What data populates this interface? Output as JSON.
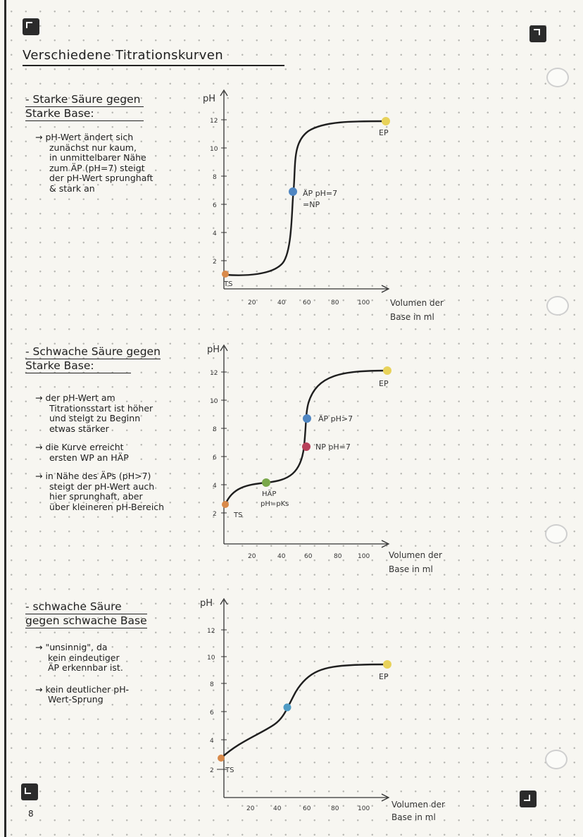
{
  "title": "Verschiedene Titrationskurven",
  "page_number": "8",
  "sections": [
    {
      "heading": [
        "- Starke Säure gegen",
        "Starke Base:"
      ],
      "notes": [
        [
          "→ pH-Wert ändert sich",
          "zunächst nur kaum,",
          "in unmittelbarer Nähe",
          "zum ÄP (pH=7) steigt",
          "der pH-Wert sprunghaft",
          "& stark an"
        ]
      ],
      "graph": {
        "y_axis_label": "pH",
        "y_ticks": [
          "12",
          "10",
          "8",
          "6",
          "4",
          "2"
        ],
        "x_ticks": [
          "20",
          "40",
          "60",
          "80",
          "100"
        ],
        "x_axis_label": [
          "Volumen der",
          "Base in ml"
        ],
        "start_label": "TS",
        "end_label": "EP",
        "points": [
          {
            "label": [
              "ÄP pH=7",
              "=NP"
            ],
            "color": "#4f86c2"
          }
        ],
        "start_color": "#d98a4a",
        "end_color": "#e8d25a"
      }
    },
    {
      "heading": [
        "- Schwache Säure gegen",
        "Starke Base:"
      ],
      "notes": [
        [
          "→ der pH-Wert am",
          "Titrationsstart ist höher",
          "und steigt zu Beginn",
          "etwas stärker"
        ],
        [
          "→ die Kurve erreicht",
          "ersten WP an HÄP"
        ],
        [
          "→ in Nähe des ÄPs (pH>7)",
          "steigt der pH-Wert auch",
          "hier sprunghaft, aber",
          "über kleineren pH-Bereich"
        ]
      ],
      "graph": {
        "y_axis_label": "pH",
        "y_ticks": [
          "12",
          "10",
          "8",
          "6",
          "4",
          "2"
        ],
        "x_ticks": [
          "20",
          "40",
          "60",
          "80",
          "100"
        ],
        "x_axis_label": [
          "Volumen der",
          "Base in ml"
        ],
        "start_label": "TS",
        "end_label": "EP",
        "points": [
          {
            "label": [
              "ÄP pH>7"
            ],
            "color": "#4f86c2"
          },
          {
            "label": [
              "NP pH=7"
            ],
            "color": "#b8405a"
          },
          {
            "label": [
              "HÄP",
              "pH=pKs"
            ],
            "color": "#7aa84a"
          }
        ],
        "start_color": "#d98a4a",
        "end_color": "#e8d25a"
      }
    },
    {
      "heading": [
        "- schwache Säure",
        "gegen schwache Base"
      ],
      "notes": [
        [
          "→ \"unsinnig\", da",
          "kein eindeutiger",
          "ÄP erkennbar ist."
        ],
        [
          "→ kein deutlicher pH-",
          "Wert-Sprung"
        ]
      ],
      "graph": {
        "y_axis_label": "pH",
        "y_ticks": [
          "12",
          "10",
          "8",
          "6",
          "4",
          "2"
        ],
        "x_ticks": [
          "20",
          "40",
          "60",
          "80",
          "100"
        ],
        "x_axis_label": [
          "Volumen der",
          "Base in ml"
        ],
        "start_label": "TS",
        "end_label": "EP",
        "points": [
          {
            "label": [],
            "color": "#4f9bc4"
          }
        ],
        "start_color": "#d98a4a",
        "end_color": "#e8d25a"
      }
    }
  ]
}
